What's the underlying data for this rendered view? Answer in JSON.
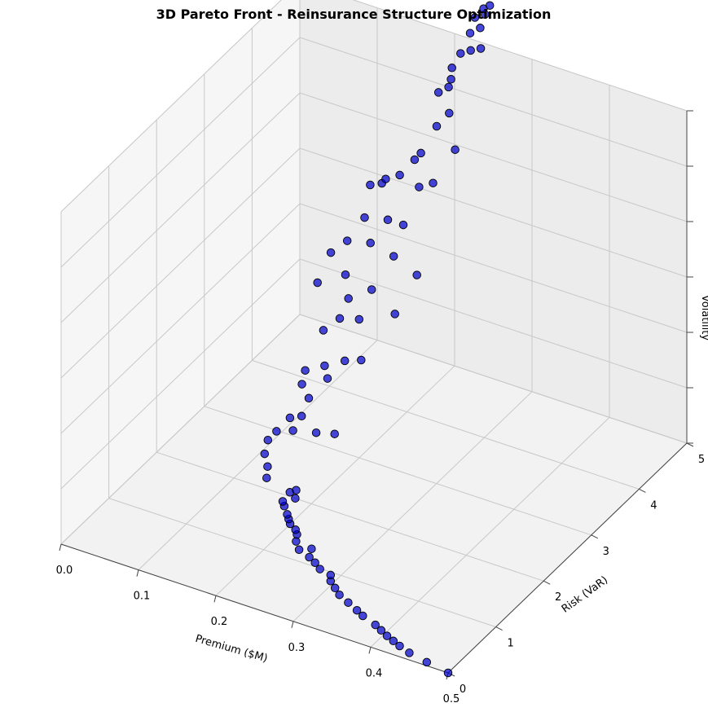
{
  "chart_data": {
    "type": "scatter3d",
    "title": "3D Pareto Front - Reinsurance Structure Optimization",
    "xlabel": "Premium ($M)",
    "ylabel": "Risk (VaR)",
    "zlabel": "Volatility",
    "xlim": [
      0.0,
      0.5
    ],
    "ylim": [
      0,
      5
    ],
    "zlim": [
      0.15,
      0.45
    ],
    "xticks": [
      "0.0",
      "0.1",
      "0.2",
      "0.3",
      "0.4",
      "0.5"
    ],
    "yticks": [
      "0",
      "1",
      "2",
      "3",
      "4",
      "5"
    ],
    "zticks": [
      "0.15",
      "0.20",
      "0.25",
      "0.30",
      "0.35",
      "0.40",
      "0.45"
    ],
    "grid": true,
    "marker_color": "#0000cc",
    "marker_edge_color": "#000000",
    "points": [
      {
        "x": 0.5,
        "y": 0.0,
        "z": 0.15
      },
      {
        "x": 0.47,
        "y": 0.04,
        "z": 0.151
      },
      {
        "x": 0.445,
        "y": 0.08,
        "z": 0.152
      },
      {
        "x": 0.43,
        "y": 0.12,
        "z": 0.153
      },
      {
        "x": 0.42,
        "y": 0.15,
        "z": 0.154
      },
      {
        "x": 0.41,
        "y": 0.18,
        "z": 0.155
      },
      {
        "x": 0.4,
        "y": 0.22,
        "z": 0.156
      },
      {
        "x": 0.39,
        "y": 0.26,
        "z": 0.157
      },
      {
        "x": 0.37,
        "y": 0.32,
        "z": 0.158
      },
      {
        "x": 0.36,
        "y": 0.36,
        "z": 0.159
      },
      {
        "x": 0.345,
        "y": 0.42,
        "z": 0.16
      },
      {
        "x": 0.33,
        "y": 0.48,
        "z": 0.161
      },
      {
        "x": 0.32,
        "y": 0.55,
        "z": 0.162
      },
      {
        "x": 0.31,
        "y": 0.62,
        "z": 0.163
      },
      {
        "x": 0.305,
        "y": 0.7,
        "z": 0.164
      },
      {
        "x": 0.29,
        "y": 0.72,
        "z": 0.165
      },
      {
        "x": 0.28,
        "y": 0.78,
        "z": 0.166
      },
      {
        "x": 0.27,
        "y": 0.82,
        "z": 0.167
      },
      {
        "x": 0.265,
        "y": 0.95,
        "z": 0.168
      },
      {
        "x": 0.255,
        "y": 0.85,
        "z": 0.169
      },
      {
        "x": 0.245,
        "y": 0.95,
        "z": 0.17
      },
      {
        "x": 0.24,
        "y": 1.05,
        "z": 0.171
      },
      {
        "x": 0.235,
        "y": 1.1,
        "z": 0.172
      },
      {
        "x": 0.225,
        "y": 1.15,
        "z": 0.173
      },
      {
        "x": 0.22,
        "y": 1.2,
        "z": 0.174
      },
      {
        "x": 0.215,
        "y": 1.25,
        "z": 0.175
      },
      {
        "x": 0.205,
        "y": 1.35,
        "z": 0.176
      },
      {
        "x": 0.2,
        "y": 1.4,
        "z": 0.177
      },
      {
        "x": 0.21,
        "y": 1.5,
        "z": 0.178
      },
      {
        "x": 0.2,
        "y": 1.55,
        "z": 0.179
      },
      {
        "x": 0.205,
        "y": 1.6,
        "z": 0.18
      },
      {
        "x": 0.17,
        "y": 1.55,
        "z": 0.185
      },
      {
        "x": 0.165,
        "y": 1.65,
        "z": 0.19
      },
      {
        "x": 0.155,
        "y": 1.75,
        "z": 0.195
      },
      {
        "x": 0.15,
        "y": 1.9,
        "z": 0.2
      },
      {
        "x": 0.155,
        "y": 2.0,
        "z": 0.205
      },
      {
        "x": 0.17,
        "y": 2.1,
        "z": 0.205
      },
      {
        "x": 0.16,
        "y": 2.2,
        "z": 0.21
      },
      {
        "x": 0.175,
        "y": 2.2,
        "z": 0.215
      },
      {
        "x": 0.2,
        "y": 2.1,
        "z": 0.21
      },
      {
        "x": 0.23,
        "y": 2.0,
        "z": 0.22
      },
      {
        "x": 0.175,
        "y": 2.35,
        "z": 0.225
      },
      {
        "x": 0.16,
        "y": 2.45,
        "z": 0.23
      },
      {
        "x": 0.155,
        "y": 2.6,
        "z": 0.235
      },
      {
        "x": 0.19,
        "y": 2.5,
        "z": 0.24
      },
      {
        "x": 0.18,
        "y": 2.6,
        "z": 0.245
      },
      {
        "x": 0.2,
        "y": 2.7,
        "z": 0.25
      },
      {
        "x": 0.215,
        "y": 2.8,
        "z": 0.25
      },
      {
        "x": 0.16,
        "y": 2.9,
        "z": 0.26
      },
      {
        "x": 0.175,
        "y": 3.0,
        "z": 0.27
      },
      {
        "x": 0.2,
        "y": 3.0,
        "z": 0.275
      },
      {
        "x": 0.14,
        "y": 3.1,
        "z": 0.29
      },
      {
        "x": 0.18,
        "y": 3.1,
        "z": 0.285
      },
      {
        "x": 0.17,
        "y": 3.2,
        "z": 0.3
      },
      {
        "x": 0.21,
        "y": 3.1,
        "z": 0.3
      },
      {
        "x": 0.24,
        "y": 3.1,
        "z": 0.285
      },
      {
        "x": 0.145,
        "y": 3.3,
        "z": 0.31
      },
      {
        "x": 0.16,
        "y": 3.4,
        "z": 0.32
      },
      {
        "x": 0.19,
        "y": 3.4,
        "z": 0.325
      },
      {
        "x": 0.22,
        "y": 3.4,
        "z": 0.32
      },
      {
        "x": 0.25,
        "y": 3.4,
        "z": 0.31
      },
      {
        "x": 0.17,
        "y": 3.6,
        "z": 0.335
      },
      {
        "x": 0.2,
        "y": 3.6,
        "z": 0.34
      },
      {
        "x": 0.22,
        "y": 3.6,
        "z": 0.34
      },
      {
        "x": 0.165,
        "y": 3.8,
        "z": 0.355
      },
      {
        "x": 0.18,
        "y": 3.8,
        "z": 0.36
      },
      {
        "x": 0.185,
        "y": 3.8,
        "z": 0.365
      },
      {
        "x": 0.2,
        "y": 3.85,
        "z": 0.37
      },
      {
        "x": 0.225,
        "y": 3.85,
        "z": 0.365
      },
      {
        "x": 0.24,
        "y": 3.9,
        "z": 0.37
      },
      {
        "x": 0.21,
        "y": 4.0,
        "z": 0.38
      },
      {
        "x": 0.215,
        "y": 4.05,
        "z": 0.385
      },
      {
        "x": 0.25,
        "y": 4.2,
        "z": 0.39
      },
      {
        "x": 0.22,
        "y": 4.3,
        "z": 0.4
      },
      {
        "x": 0.23,
        "y": 4.4,
        "z": 0.41
      },
      {
        "x": 0.21,
        "y": 4.5,
        "z": 0.42
      },
      {
        "x": 0.22,
        "y": 4.55,
        "z": 0.425
      },
      {
        "x": 0.22,
        "y": 4.6,
        "z": 0.43
      },
      {
        "x": 0.215,
        "y": 4.7,
        "z": 0.435
      },
      {
        "x": 0.22,
        "y": 4.8,
        "z": 0.445
      },
      {
        "x": 0.23,
        "y": 4.85,
        "z": 0.448
      },
      {
        "x": 0.24,
        "y": 4.9,
        "z": 0.45
      },
      {
        "x": 0.22,
        "y": 5.0,
        "z": 0.455
      },
      {
        "x": 0.23,
        "y": 5.05,
        "z": 0.46
      },
      {
        "x": 0.22,
        "y": 5.1,
        "z": 0.465
      },
      {
        "x": 0.23,
        "y": 5.15,
        "z": 0.468
      },
      {
        "x": 0.225,
        "y": 5.2,
        "z": 0.47
      },
      {
        "x": 0.23,
        "y": 5.25,
        "z": 0.472
      }
    ]
  }
}
